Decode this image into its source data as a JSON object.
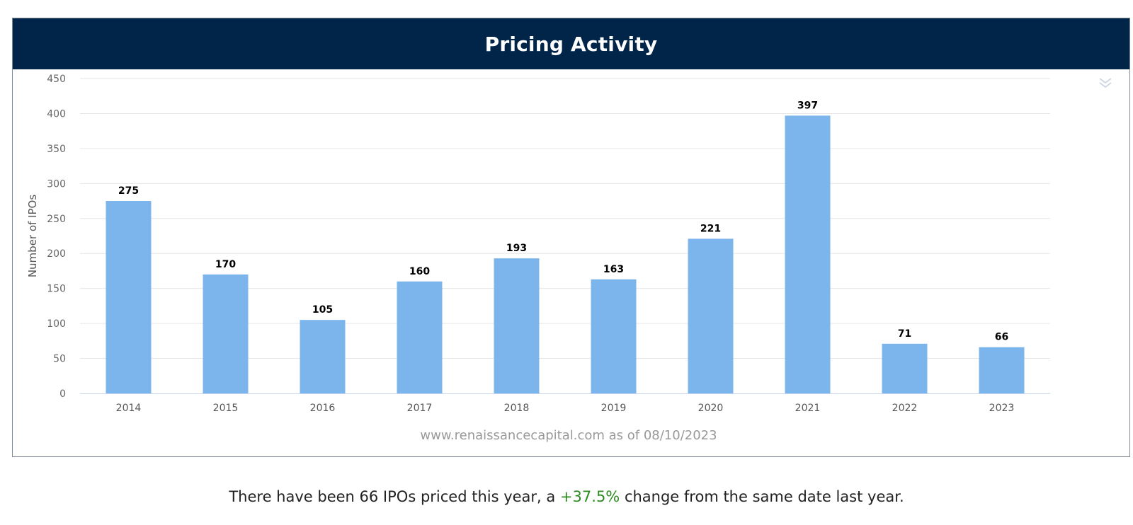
{
  "panel": {
    "title": "Pricing Activity"
  },
  "chart_data": {
    "type": "bar",
    "title": "Pricing Activity",
    "categories": [
      "2014",
      "2015",
      "2016",
      "2017",
      "2018",
      "2019",
      "2020",
      "2021",
      "2022",
      "2023"
    ],
    "values": [
      275,
      170,
      105,
      160,
      193,
      163,
      221,
      397,
      71,
      66
    ],
    "ylabel": "Number of IPOs",
    "xlabel": "",
    "ylim": [
      0,
      450
    ],
    "yticks": [
      0,
      50,
      100,
      150,
      200,
      250,
      300,
      350,
      400,
      450
    ],
    "grid": true,
    "bar_color": "#7cb5ec",
    "credit": "www.renaissancecapital.com as of 08/10/2023"
  },
  "summary": {
    "text_before": "There have been 66 IPOs priced this year, a ",
    "change": "+37.5%",
    "text_after": " change from the same date last year.",
    "change_color": "#2e8b22"
  },
  "icons": {
    "menu": "double-chevron-down-icon"
  }
}
